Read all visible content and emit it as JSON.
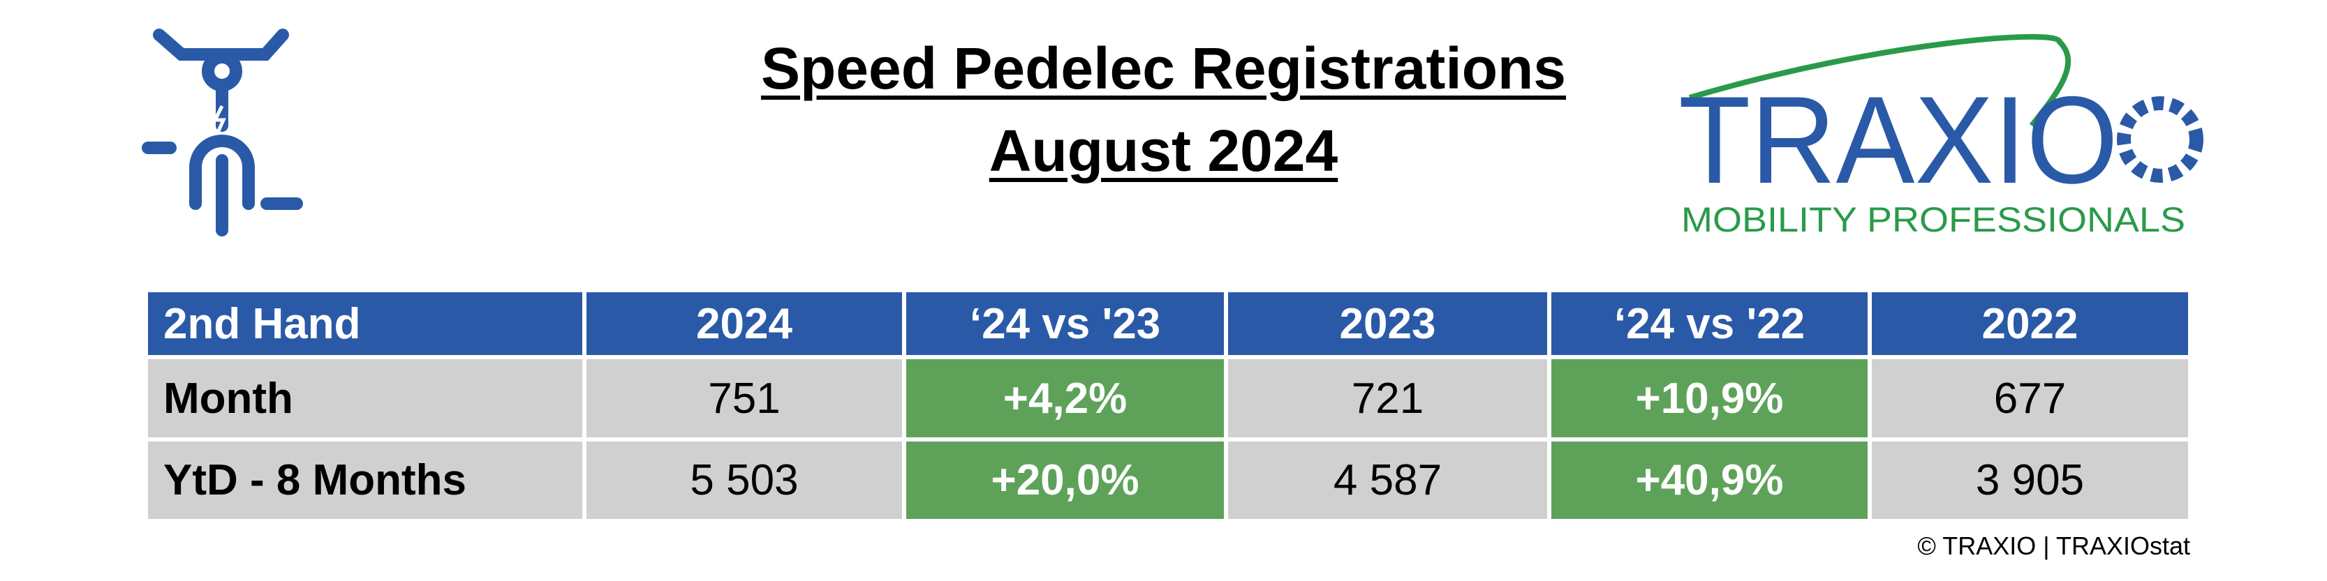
{
  "header": {
    "title_line1": "Speed Pedelec Registrations",
    "title_line2": "August 2024"
  },
  "logo": {
    "name": "TRAXIO",
    "tagline": "MOBILITY PROFESSIONALS"
  },
  "table": {
    "header": [
      "2nd Hand",
      "2024",
      "‘24 vs '23",
      "2023",
      "‘24 vs '22",
      "2022"
    ],
    "rows": [
      [
        "Month",
        "751",
        "+4,2%",
        "721",
        "+10,9%",
        "677"
      ],
      [
        "YtD - 8 Months",
        "5 503",
        "+20,0%",
        "4 587",
        "+40,9%",
        "3 905"
      ]
    ]
  },
  "footer": {
    "copyright": "© TRAXIO | TRAXIOstat"
  }
}
